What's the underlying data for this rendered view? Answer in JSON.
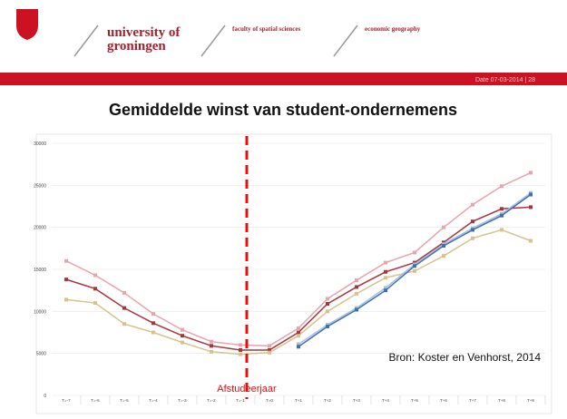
{
  "header": {
    "university": [
      "university of",
      "groningen"
    ],
    "faculty": "faculty of spatial sciences",
    "department": "economic geography",
    "date": "Date 07-03-2014 | 28"
  },
  "chart_data": {
    "type": "line",
    "title": "Gemiddelde winst van student-ondernemens",
    "categories": [
      "T=-7",
      "T=-6",
      "T=-5",
      "T=-4",
      "T=-3",
      "T=-2",
      "T=-1",
      "T=0",
      "T+1",
      "T+2",
      "T+3",
      "T+4",
      "T+5",
      "T+6",
      "T+7",
      "T+8",
      "T+9"
    ],
    "series": [
      {
        "color": "#e8a3ab",
        "values": [
          16000,
          14300,
          12200,
          9700,
          7800,
          6400,
          6000,
          5900,
          8000,
          11500,
          13700,
          15800,
          17000,
          20000,
          22700,
          24900,
          26500
        ]
      },
      {
        "color": "#a8343c",
        "values": [
          13800,
          12700,
          10400,
          8600,
          7100,
          5900,
          5400,
          5400,
          7500,
          10900,
          12900,
          14700,
          15800,
          18200,
          20700,
          22200,
          22400
        ]
      },
      {
        "color": "#d8c28c",
        "values": [
          11400,
          11000,
          8500,
          7500,
          6300,
          5200,
          4900,
          5100,
          7100,
          10000,
          12100,
          14000,
          14800,
          16600,
          18700,
          19700,
          18400
        ]
      },
      {
        "color": "#a6c0e2",
        "values": [
          null,
          null,
          null,
          null,
          null,
          null,
          null,
          null,
          6100,
          8400,
          10400,
          12800,
          15600,
          18000,
          19900,
          21600,
          24100
        ]
      },
      {
        "color": "#3f6fae",
        "values": [
          null,
          null,
          null,
          null,
          null,
          null,
          null,
          null,
          5800,
          8200,
          10200,
          12500,
          15400,
          17800,
          19700,
          21400,
          23900
        ]
      }
    ],
    "ylim": [
      0,
      30000
    ],
    "yticks": [
      0,
      5000,
      10000,
      15000,
      20000,
      25000,
      30000
    ],
    "grid": true,
    "annotations": [
      "Afstudeerjaar",
      "Bron: Koster en Venhorst, 2014"
    ]
  }
}
